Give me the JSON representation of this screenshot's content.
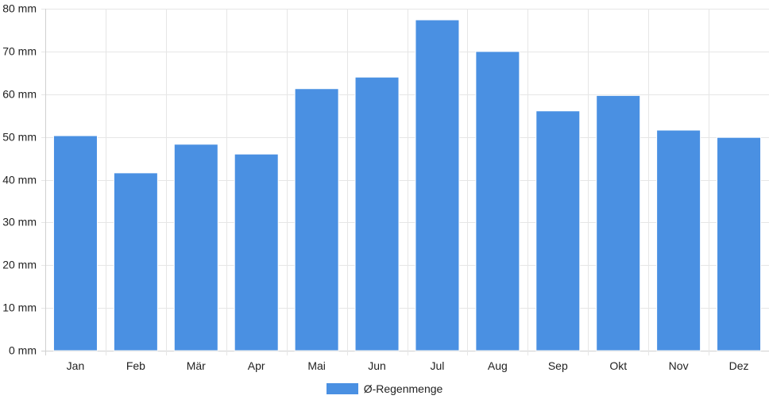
{
  "chart_data": {
    "type": "bar",
    "categories": [
      "Jan",
      "Feb",
      "Mär",
      "Apr",
      "Mai",
      "Jun",
      "Jul",
      "Aug",
      "Sep",
      "Okt",
      "Nov",
      "Dez"
    ],
    "series": [
      {
        "name": "Ø-Regenmenge",
        "values": [
          50.3,
          41.6,
          48.3,
          46.0,
          61.3,
          64.0,
          77.4,
          70.0,
          56.1,
          59.7,
          51.6,
          49.9
        ],
        "color": "#4a90e2"
      }
    ],
    "y_tick_labels": [
      "0 mm",
      "10 mm",
      "20 mm",
      "30 mm",
      "40 mm",
      "50 mm",
      "60 mm",
      "70 mm",
      "80 mm"
    ],
    "ylim": [
      0,
      80
    ],
    "y_tick_step": 10,
    "grid": true,
    "legend_position": "bottom-center"
  }
}
